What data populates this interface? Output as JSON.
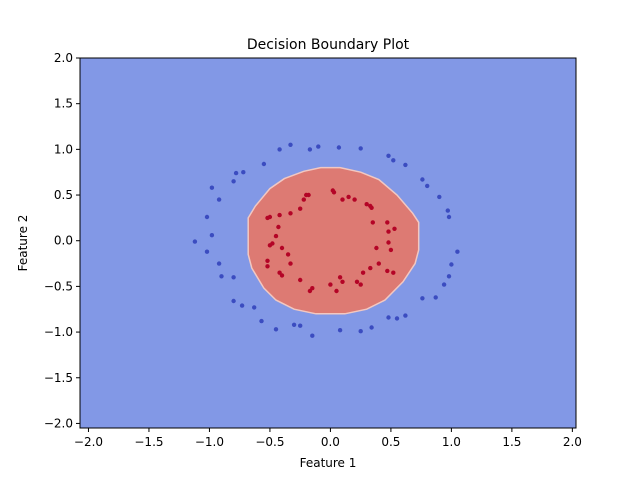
{
  "chart_data": {
    "type": "scatter",
    "title": "Decision Boundary Plot",
    "xlabel": "Feature 1",
    "ylabel": "Feature 2",
    "xlim": [
      -2.07,
      2.03
    ],
    "ylim": [
      -2.05,
      2.0
    ],
    "xticks": [
      "−2.0",
      "−1.5",
      "−1.0",
      "−0.5",
      "0.0",
      "0.5",
      "1.0",
      "1.5",
      "2.0"
    ],
    "xtick_values": [
      -2.0,
      -1.5,
      -1.0,
      -0.5,
      0.0,
      0.5,
      1.0,
      1.5,
      2.0
    ],
    "yticks": [
      "−2.0",
      "−1.5",
      "−1.0",
      "−0.5",
      "0.0",
      "0.5",
      "1.0",
      "1.5",
      "2.0"
    ],
    "ytick_values": [
      -2.0,
      -1.5,
      -1.0,
      -0.5,
      0.0,
      0.5,
      1.0,
      1.5,
      2.0
    ],
    "grid": false,
    "colors": {
      "background_region": "#8298e6",
      "inner_region": "#dd7a73",
      "inner_edge": "#f2c8c2",
      "outer_points": "#3b4cc0",
      "inner_points": "#b40426"
    },
    "decision_region": {
      "class": "inner",
      "boundary": [
        [
          -0.08,
          0.8
        ],
        [
          0.08,
          0.8
        ],
        [
          0.25,
          0.75
        ],
        [
          0.4,
          0.67
        ],
        [
          0.55,
          0.5
        ],
        [
          0.68,
          0.3
        ],
        [
          0.73,
          0.2
        ],
        [
          0.73,
          -0.1
        ],
        [
          0.7,
          -0.25
        ],
        [
          0.6,
          -0.45
        ],
        [
          0.45,
          -0.65
        ],
        [
          0.3,
          -0.75
        ],
        [
          0.12,
          -0.8
        ],
        [
          -0.12,
          -0.8
        ],
        [
          -0.3,
          -0.75
        ],
        [
          -0.45,
          -0.65
        ],
        [
          -0.55,
          -0.52
        ],
        [
          -0.65,
          -0.3
        ],
        [
          -0.68,
          -0.15
        ],
        [
          -0.68,
          0.25
        ],
        [
          -0.62,
          0.38
        ],
        [
          -0.5,
          0.57
        ],
        [
          -0.38,
          0.68
        ],
        [
          -0.22,
          0.76
        ]
      ]
    },
    "series": [
      {
        "class": "outer",
        "points": [
          [
            -0.33,
            1.05
          ],
          [
            -0.1,
            1.03
          ],
          [
            0.07,
            1.02
          ],
          [
            0.25,
            1.01
          ],
          [
            -0.17,
            1.0
          ],
          [
            -0.42,
            1.0
          ],
          [
            0.48,
            0.93
          ],
          [
            0.52,
            0.88
          ],
          [
            0.62,
            0.83
          ],
          [
            -0.55,
            0.84
          ],
          [
            -0.72,
            0.75
          ],
          [
            -0.78,
            0.74
          ],
          [
            -0.8,
            0.65
          ],
          [
            0.76,
            0.67
          ],
          [
            0.8,
            0.6
          ],
          [
            -0.98,
            0.58
          ],
          [
            -0.92,
            0.45
          ],
          [
            0.9,
            0.48
          ],
          [
            0.97,
            0.33
          ],
          [
            0.98,
            0.26
          ],
          [
            -1.02,
            0.26
          ],
          [
            -0.98,
            0.06
          ],
          [
            -1.12,
            -0.01
          ],
          [
            -1.02,
            -0.12
          ],
          [
            1.05,
            -0.12
          ],
          [
            1.0,
            -0.26
          ],
          [
            -0.92,
            -0.25
          ],
          [
            -0.9,
            -0.39
          ],
          [
            0.98,
            -0.39
          ],
          [
            -0.8,
            -0.4
          ],
          [
            0.94,
            -0.48
          ],
          [
            -0.8,
            -0.66
          ],
          [
            -0.73,
            -0.71
          ],
          [
            0.87,
            -0.62
          ],
          [
            0.76,
            -0.63
          ],
          [
            -0.63,
            -0.73
          ],
          [
            -0.57,
            -0.88
          ],
          [
            0.48,
            -0.84
          ],
          [
            0.55,
            -0.85
          ],
          [
            0.62,
            -0.82
          ],
          [
            -0.3,
            -0.92
          ],
          [
            -0.25,
            -0.93
          ],
          [
            -0.45,
            -0.97
          ],
          [
            -0.15,
            -1.04
          ],
          [
            0.08,
            -0.98
          ],
          [
            0.25,
            -0.99
          ],
          [
            0.34,
            -0.95
          ]
        ]
      },
      {
        "class": "inner",
        "points": [
          [
            0.02,
            0.55
          ],
          [
            0.03,
            0.53
          ],
          [
            0.15,
            0.48
          ],
          [
            -0.2,
            0.5
          ],
          [
            -0.18,
            0.5
          ],
          [
            -0.22,
            0.45
          ],
          [
            0.1,
            0.45
          ],
          [
            0.2,
            0.45
          ],
          [
            0.33,
            0.38
          ],
          [
            0.3,
            0.4
          ],
          [
            0.34,
            0.36
          ],
          [
            -0.25,
            0.35
          ],
          [
            -0.33,
            0.3
          ],
          [
            -0.42,
            0.28
          ],
          [
            -0.5,
            0.26
          ],
          [
            -0.52,
            0.25
          ],
          [
            0.35,
            0.2
          ],
          [
            0.47,
            0.2
          ],
          [
            0.53,
            0.13
          ],
          [
            0.48,
            0.1
          ],
          [
            -0.43,
            0.15
          ],
          [
            -0.45,
            0.05
          ],
          [
            0.48,
            -0.02
          ],
          [
            -0.48,
            -0.03
          ],
          [
            -0.5,
            -0.05
          ],
          [
            -0.4,
            -0.08
          ],
          [
            0.38,
            -0.08
          ],
          [
            0.5,
            -0.1
          ],
          [
            -0.35,
            -0.15
          ],
          [
            -0.33,
            -0.25
          ],
          [
            -0.52,
            -0.22
          ],
          [
            0.4,
            -0.25
          ],
          [
            0.33,
            -0.3
          ],
          [
            -0.52,
            -0.28
          ],
          [
            -0.42,
            -0.35
          ],
          [
            -0.4,
            -0.38
          ],
          [
            0.47,
            -0.33
          ],
          [
            0.27,
            -0.35
          ],
          [
            0.52,
            -0.35
          ],
          [
            0.08,
            -0.4
          ],
          [
            0.1,
            -0.45
          ],
          [
            -0.25,
            -0.43
          ],
          [
            0.22,
            -0.45
          ],
          [
            0.0,
            -0.48
          ],
          [
            0.25,
            -0.48
          ],
          [
            -0.15,
            -0.52
          ],
          [
            -0.17,
            -0.55
          ],
          [
            0.05,
            -0.55
          ]
        ]
      }
    ]
  }
}
